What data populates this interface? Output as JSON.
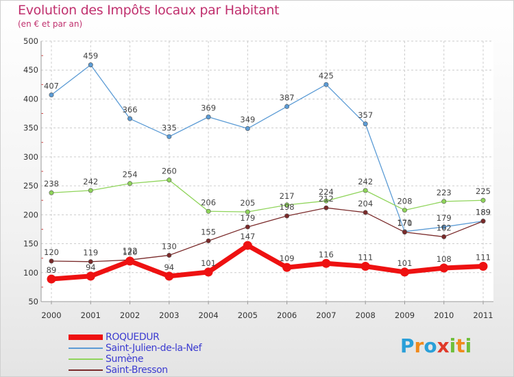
{
  "chart_data": {
    "type": "line",
    "title": "Evolution des Impôts locaux par Habitant",
    "subtitle": "(en € et par an)",
    "xlabel": "",
    "ylabel": "",
    "x": [
      "2000",
      "2001",
      "2002",
      "2003",
      "2004",
      "2005",
      "2006",
      "2007",
      "2008",
      "2009",
      "2010",
      "2011"
    ],
    "ylim": [
      50,
      500
    ],
    "yticks": [
      "50",
      "100",
      "150",
      "200",
      "250",
      "300",
      "350",
      "400",
      "450",
      "500"
    ],
    "grid": true,
    "legend_position": "bottom-left",
    "series": [
      {
        "name": "Saint-Julien-de-la-Nef",
        "color": "#5b9bd5",
        "values": [
          407,
          459,
          366,
          335,
          369,
          349,
          387,
          425,
          357,
          171,
          179,
          189
        ],
        "labels": [
          "407",
          "459",
          "366",
          "335",
          "369",
          "349",
          "387",
          "425",
          "357",
          "171",
          "179",
          "189"
        ]
      },
      {
        "name": "Sumène",
        "color": "#8fd45a",
        "values": [
          238,
          242,
          254,
          260,
          206,
          205,
          217,
          224,
          242,
          208,
          223,
          225
        ],
        "labels": [
          "238",
          "242",
          "254",
          "260",
          "206",
          "205",
          "217",
          "224",
          "242",
          "208",
          "223",
          "225"
        ]
      },
      {
        "name": "Saint-Bresson",
        "color": "#7a2a2a",
        "values": [
          120,
          119,
          122,
          130,
          155,
          179,
          198,
          212,
          204,
          170,
          162,
          189
        ],
        "labels": [
          "120",
          "119",
          "122",
          "130",
          "155",
          "179",
          "198",
          "212",
          "204",
          "170",
          "162",
          "189"
        ]
      },
      {
        "name": "ROQUEDUR",
        "color": "#ee1111",
        "values": [
          89,
          94,
          120,
          94,
          101,
          147,
          109,
          116,
          111,
          101,
          108,
          111
        ],
        "labels": [
          "89",
          "94",
          "120",
          "94",
          "101",
          "147",
          "109",
          "116",
          "111",
          "101",
          "108",
          "111"
        ]
      }
    ],
    "legend": [
      "ROQUEDUR",
      "Saint-Julien-de-la-Nef",
      "Sumène",
      "Saint-Bresson"
    ]
  },
  "brand": {
    "text": "Proxiti",
    "letters": [
      "P",
      "r",
      "o",
      "x",
      "i",
      "t",
      "i"
    ],
    "colors": [
      "#2a9fd8",
      "#f08a1c",
      "#2a9fd8",
      "#e03a2a",
      "#6fbf3a",
      "#f08a1c",
      "#6fbf3a"
    ]
  }
}
